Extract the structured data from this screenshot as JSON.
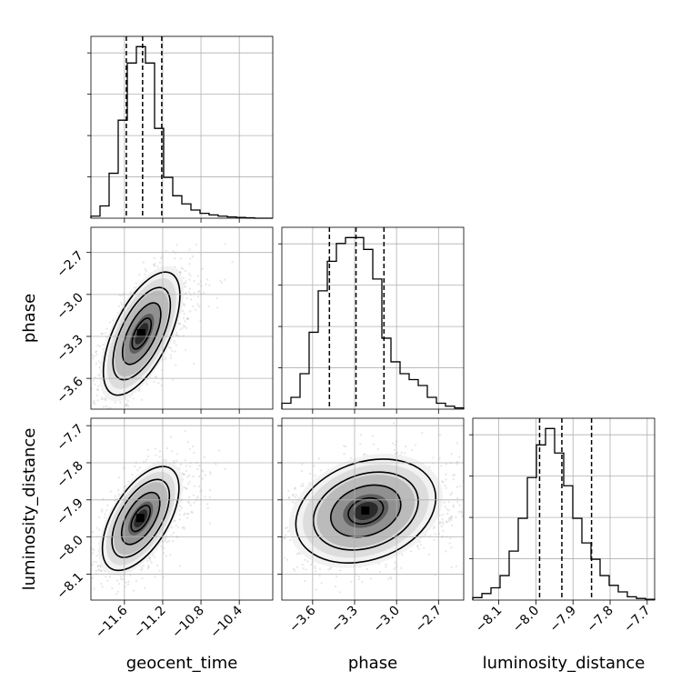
{
  "chart_data": {
    "type": "corner",
    "parameters": [
      "geocent_time",
      "phase",
      "luminosity_distance"
    ],
    "labels": {
      "geocent_time": "geocent_time",
      "phase": "phase",
      "luminosity_distance": "luminosity_distance"
    },
    "grid": true,
    "ranges": {
      "geocent_time": [
        -11.95,
        -10.05
      ],
      "phase": [
        -3.82,
        -2.52
      ],
      "luminosity_distance": [
        -8.17,
        -7.68
      ]
    },
    "ticks": {
      "geocent_time": [
        -11.6,
        -11.2,
        -10.8,
        -10.4
      ],
      "phase": [
        -3.6,
        -3.3,
        -3.0,
        -2.7
      ],
      "luminosity_distance": [
        -8.1,
        -8.0,
        -7.9,
        -7.8,
        -7.7
      ]
    },
    "tick_labels": {
      "geocent_time": [
        "−11.6",
        "−11.2",
        "−10.8",
        "−10.4"
      ],
      "phase": [
        "−3.6",
        "−3.3",
        "−3.0",
        "−2.7"
      ],
      "luminosity_distance": [
        "−8.1",
        "−8.0",
        "−7.9",
        "−7.8",
        "−7.7"
      ]
    },
    "histograms": {
      "geocent_time": {
        "edges": [
          -11.95,
          -11.855,
          -11.76,
          -11.665,
          -11.57,
          -11.475,
          -11.38,
          -11.285,
          -11.19,
          -11.095,
          -11.0,
          -10.905,
          -10.81,
          -10.715,
          -10.62,
          -10.525,
          -10.43,
          -10.335,
          -10.24,
          -10.145,
          -10.05
        ],
        "counts": [
          0.5,
          3,
          11,
          24,
          38,
          42,
          38,
          22,
          10,
          5.5,
          3.5,
          2,
          1.2,
          0.8,
          0.5,
          0.3,
          0.2,
          0.1,
          0,
          0
        ],
        "quantiles": [
          -11.58,
          -11.41,
          -11.21
        ]
      },
      "phase": {
        "edges": [
          -3.82,
          -3.755,
          -3.69,
          -3.625,
          -3.56,
          -3.495,
          -3.43,
          -3.365,
          -3.3,
          -3.235,
          -3.17,
          -3.105,
          -3.04,
          -2.975,
          -2.91,
          -2.845,
          -2.78,
          -2.715,
          -2.65,
          -2.585,
          -2.52
        ],
        "counts": [
          1,
          2,
          6,
          13,
          20,
          25,
          28,
          29,
          29,
          27,
          22,
          12,
          8,
          6,
          5,
          4,
          2,
          1,
          0.5,
          0.2
        ],
        "quantiles": [
          -3.48,
          -3.29,
          -3.09
        ]
      },
      "luminosity_distance": {
        "edges": [
          -8.17,
          -8.1455,
          -8.121,
          -8.0965,
          -8.072,
          -8.0475,
          -8.023,
          -7.9985,
          -7.974,
          -7.9495,
          -7.925,
          -7.9005,
          -7.876,
          -7.8515,
          -7.827,
          -7.8025,
          -7.778,
          -7.7535,
          -7.729,
          -7.7045,
          -7.68
        ],
        "counts": [
          0.3,
          0.8,
          1.5,
          3,
          6,
          10,
          15,
          19,
          21,
          18,
          14,
          10,
          7,
          5,
          3,
          1.8,
          1,
          0.4,
          0.2,
          0.1
        ],
        "quantiles": [
          -7.99,
          -7.93,
          -7.85
        ]
      }
    },
    "pairs": [
      {
        "x": "geocent_time",
        "y": "phase",
        "mean": [
          -11.42,
          -3.28
        ],
        "sd": [
          0.2,
          0.22
        ],
        "corr": 0.62
      },
      {
        "x": "geocent_time",
        "y": "luminosity_distance",
        "mean": [
          -11.43,
          -7.95
        ],
        "sd": [
          0.2,
          0.07
        ],
        "corr": 0.58
      },
      {
        "x": "phase",
        "y": "luminosity_distance",
        "mean": [
          -3.22,
          -7.93
        ],
        "sd": [
          0.25,
          0.07
        ],
        "corr": 0.25
      }
    ]
  }
}
